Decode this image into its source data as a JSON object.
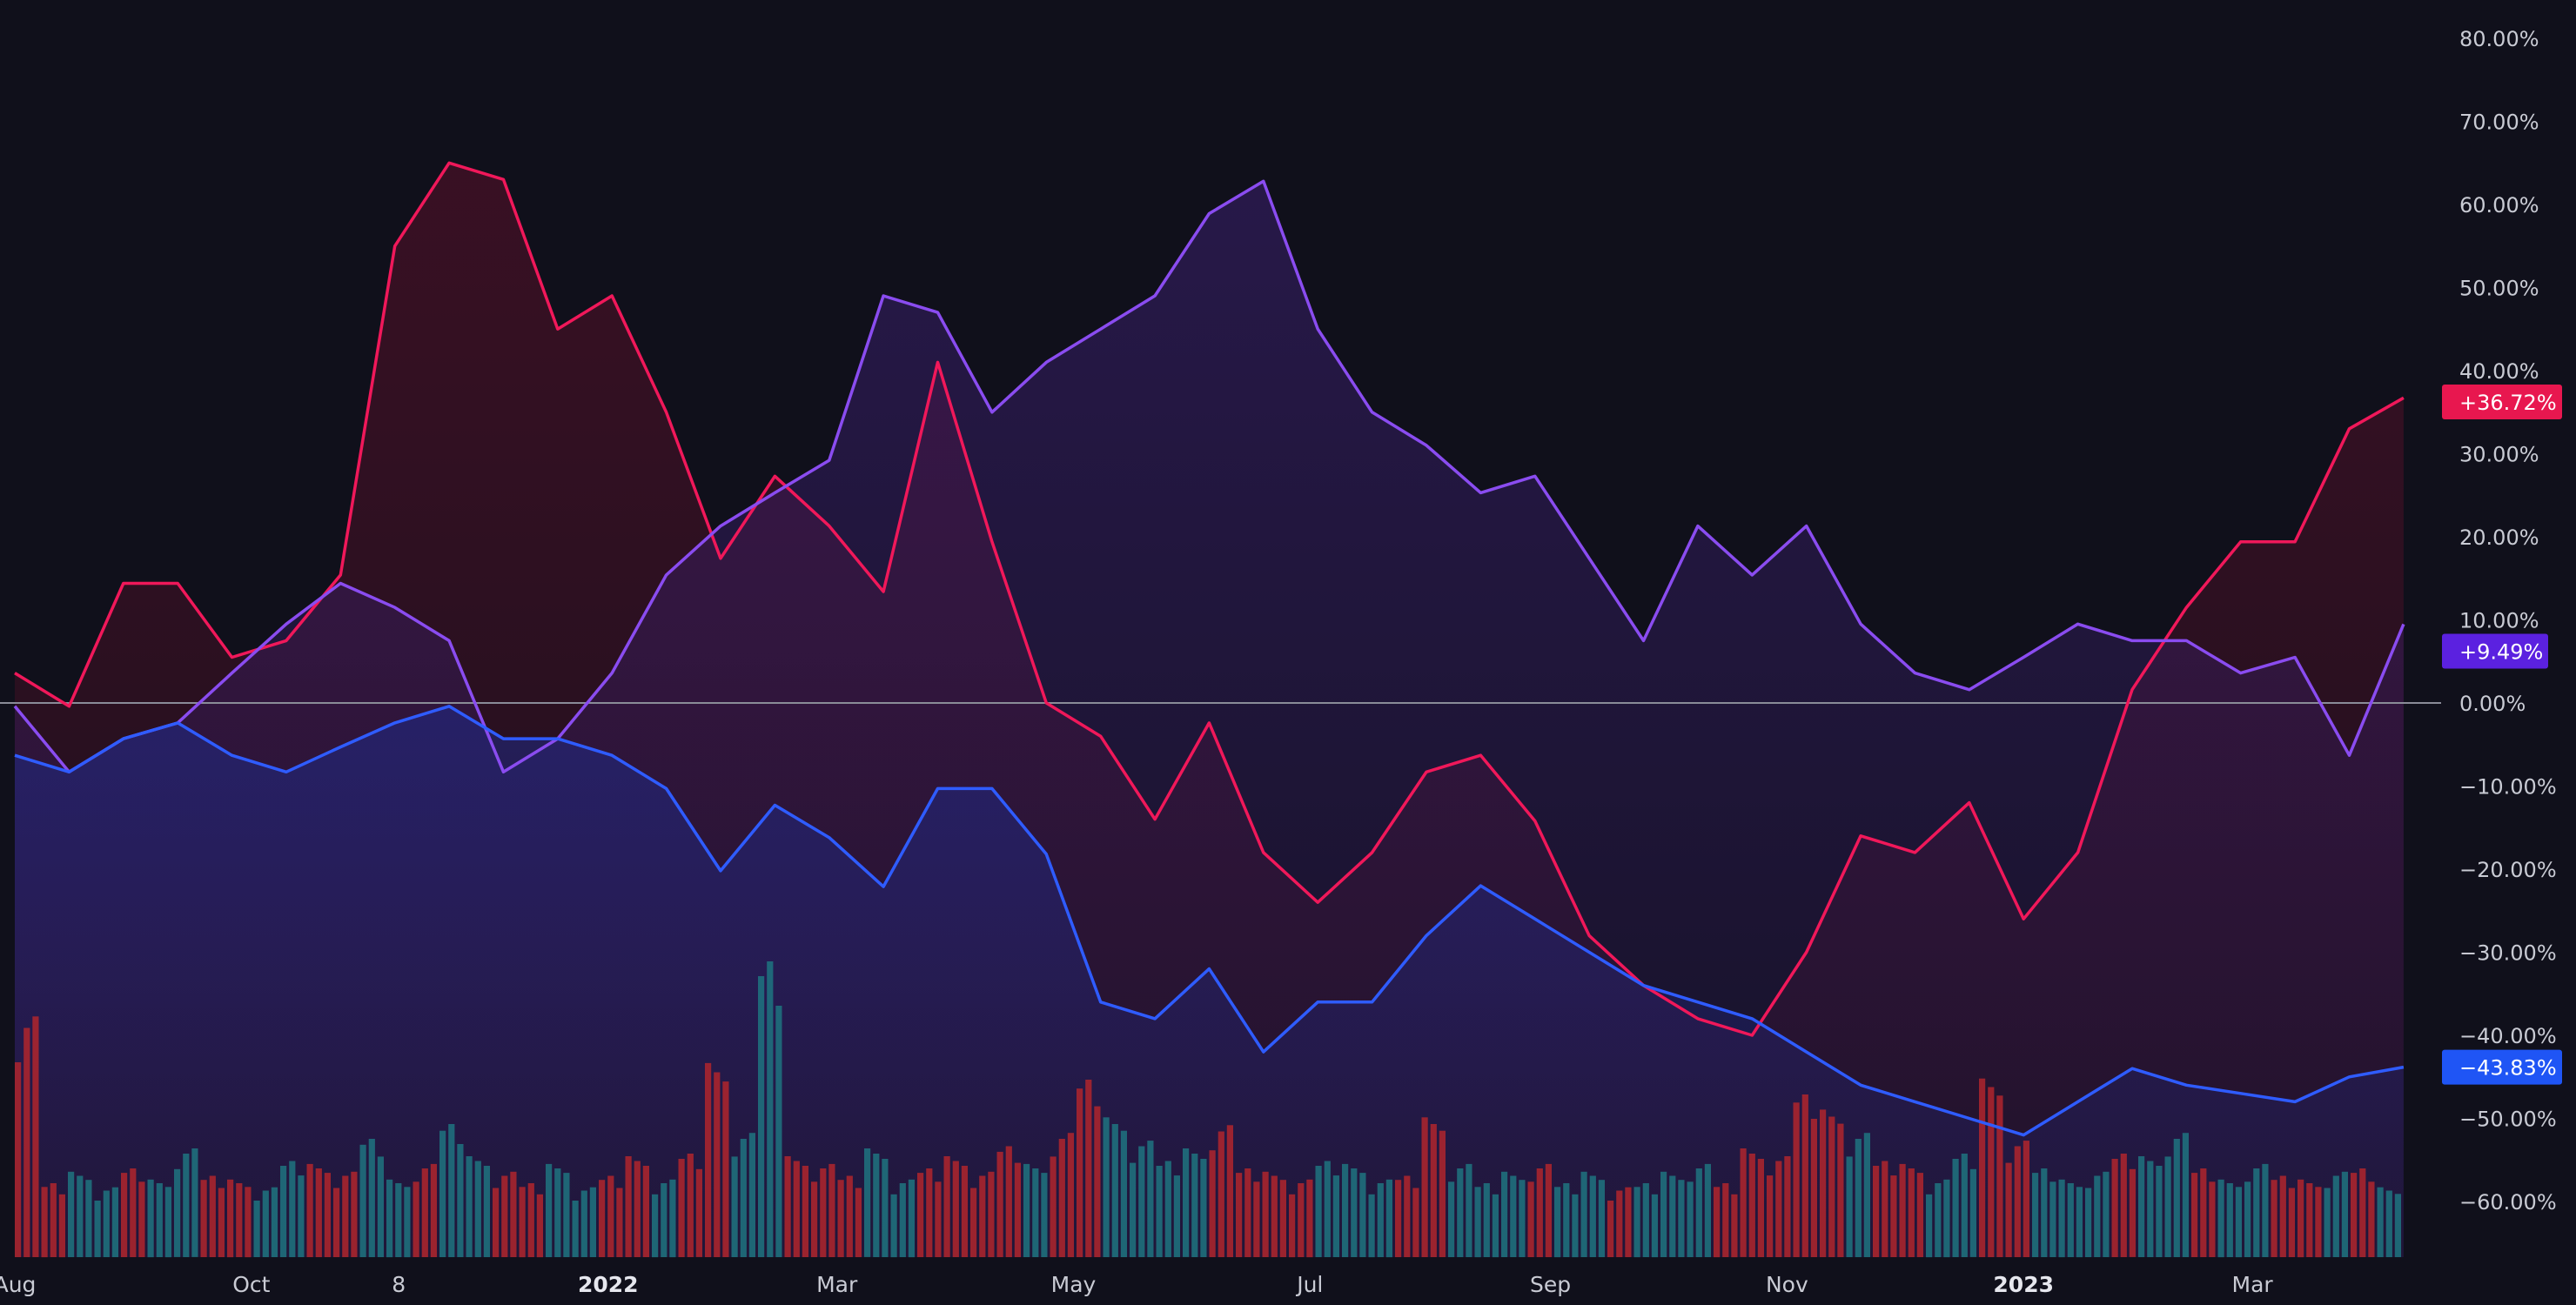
{
  "chart_data": {
    "type": "line",
    "title": "",
    "xlabel": "",
    "ylabel": "",
    "y_axis_position": "right",
    "ylim": [
      -65,
      85
    ],
    "y_ticks": [
      "80.00%",
      "70.00%",
      "60.00%",
      "50.00%",
      "40.00%",
      "30.00%",
      "20.00%",
      "10.00%",
      "0.00%",
      "-10.00%",
      "-20.00%",
      "-30.00%",
      "-40.00%",
      "-50.00%",
      "-60.00%"
    ],
    "y_tick_values": [
      80,
      70,
      60,
      50,
      40,
      30,
      20,
      10,
      0,
      -10,
      -20,
      -30,
      -40,
      -50,
      -60
    ],
    "x_ticks": [
      {
        "label": "Aug",
        "date": "2021-08-01",
        "bold": false
      },
      {
        "label": "Oct",
        "date": "2021-10-01",
        "bold": false
      },
      {
        "label": "8",
        "date": "2021-11-08",
        "bold": false
      },
      {
        "label": "2022",
        "date": "2022-01-01",
        "bold": true
      },
      {
        "label": "Mar",
        "date": "2022-03-01",
        "bold": false
      },
      {
        "label": "May",
        "date": "2022-05-01",
        "bold": false
      },
      {
        "label": "Jul",
        "date": "2022-07-01",
        "bold": false
      },
      {
        "label": "Sep",
        "date": "2022-09-01",
        "bold": false
      },
      {
        "label": "Nov",
        "date": "2022-11-01",
        "bold": false
      },
      {
        "label": "2023",
        "date": "2023-01-01",
        "bold": true
      },
      {
        "label": "Mar",
        "date": "2023-03-01",
        "bold": false
      }
    ],
    "grid": false,
    "zero_line": true,
    "dates": [
      "2021-08-01",
      "2021-08-15",
      "2021-08-29",
      "2021-09-12",
      "2021-09-26",
      "2021-10-10",
      "2021-10-24",
      "2021-11-07",
      "2021-11-21",
      "2021-12-05",
      "2021-12-19",
      "2022-01-02",
      "2022-01-16",
      "2022-01-30",
      "2022-02-13",
      "2022-02-27",
      "2022-03-13",
      "2022-03-27",
      "2022-04-10",
      "2022-04-24",
      "2022-05-08",
      "2022-05-22",
      "2022-06-05",
      "2022-06-19",
      "2022-07-03",
      "2022-07-17",
      "2022-07-31",
      "2022-08-14",
      "2022-08-28",
      "2022-09-11",
      "2022-09-25",
      "2022-10-09",
      "2022-10-23",
      "2022-11-06",
      "2022-11-20",
      "2022-12-04",
      "2022-12-18",
      "2023-01-01",
      "2023-01-15",
      "2023-01-29",
      "2023-02-12",
      "2023-02-26",
      "2023-03-12",
      "2023-03-26",
      "2023-04-09"
    ],
    "series": [
      {
        "color": "#f0185a",
        "fill": "#5a0f2a",
        "last_label": "+36.72%",
        "values": [
          3.6,
          -0.4,
          14.4,
          14.4,
          5.5,
          7.5,
          15.4,
          55,
          65,
          63,
          45,
          49,
          35,
          17.4,
          27.3,
          21.3,
          13.4,
          41,
          19.4,
          0,
          -4,
          -14,
          -2.4,
          -18,
          -24,
          -18,
          -8.3,
          -6.3,
          -14.2,
          -28,
          -34,
          -38,
          -40,
          -30,
          -16,
          -18,
          -12,
          -26,
          -18,
          1.6,
          11.5,
          19.4,
          19.4,
          33,
          36.72
        ]
      },
      {
        "color": "#8a4cf0",
        "fill": "#3a1f6e",
        "last_label": "+9.49%",
        "values": [
          -0.4,
          -8.3,
          -4.3,
          -2.4,
          3.6,
          9.5,
          14.4,
          11.5,
          7.5,
          -8.3,
          -4.3,
          3.6,
          15.4,
          21.3,
          25.3,
          29.2,
          49,
          47,
          35,
          41,
          45,
          49,
          58.9,
          62.8,
          45,
          35,
          31,
          25.3,
          27.3,
          17.4,
          7.5,
          21.3,
          15.4,
          21.3,
          9.5,
          3.6,
          1.6,
          5.5,
          9.5,
          7.5,
          7.5,
          3.6,
          5.5,
          -6.3,
          9.49
        ]
      },
      {
        "color": "#2f5cff",
        "fill": "#1f2a8a",
        "last_label": "-43.83%",
        "values": [
          -6.3,
          -8.3,
          -4.3,
          -2.4,
          -6.3,
          -8.3,
          -5.3,
          -2.4,
          -0.4,
          -4.3,
          -4.3,
          -6.3,
          -10.3,
          -20.2,
          -12.3,
          -16.2,
          -22.1,
          -10.3,
          -10.3,
          -18.2,
          -36,
          -38,
          -32,
          -42,
          -36,
          -36,
          -28,
          -22,
          -26,
          -30,
          -34,
          -36,
          -38,
          -42,
          -46,
          -48,
          -50,
          -52,
          -48,
          -44,
          -46,
          -47,
          -48,
          -45,
          -43.83
        ]
      }
    ],
    "badge_colors": [
      "#e8174f",
      "#5b21e0",
      "#1f55f5"
    ],
    "volume": {
      "up_color": "#1f7480",
      "down_color": "#b0262d",
      "values": [
        3.1,
        1.0,
        1.1,
        0.9,
        1.2,
        1.0,
        1.4,
        1.1,
        1.0,
        0.9,
        1.3,
        1.2,
        1.1,
        1.6,
        1.0,
        1.2,
        1.8,
        1.3,
        1.1,
        1.0,
        1.2,
        0.9,
        1.1,
        1.3,
        1.0,
        1.4,
        2.5,
        1.6,
        4.0,
        1.3,
        1.2,
        1.1,
        1.4,
        1.0,
        1.2,
        1.3,
        1.1,
        1.5,
        1.2,
        1.6,
        2.4,
        1.8,
        1.5,
        1.3,
        1.4,
        1.7,
        1.2,
        1.1,
        1.0,
        1.3,
        1.2,
        1.0,
        1.1,
        1.8,
        1.2,
        1.0,
        1.1,
        1.2,
        1.0,
        1.1,
        0.9,
        1.0,
        1.1,
        1.2,
        1.0,
        1.4,
        1.3,
        2.2,
        1.9,
        1.6,
        1.3,
        1.2,
        1.0,
        1.4,
        2.3,
        1.5,
        1.2,
        1.0,
        1.1,
        1.4,
        1.3,
        1.6,
        1.2,
        1.0,
        1.2,
        1.1,
        1.0,
        1.1,
        1.2,
        0.9
      ],
      "direction": "dduuduudduudduuduudduuddudduuddduuddddudduuuudddduuudduuuduuduuudddddudduudduuuduuduuddudu"
    }
  }
}
